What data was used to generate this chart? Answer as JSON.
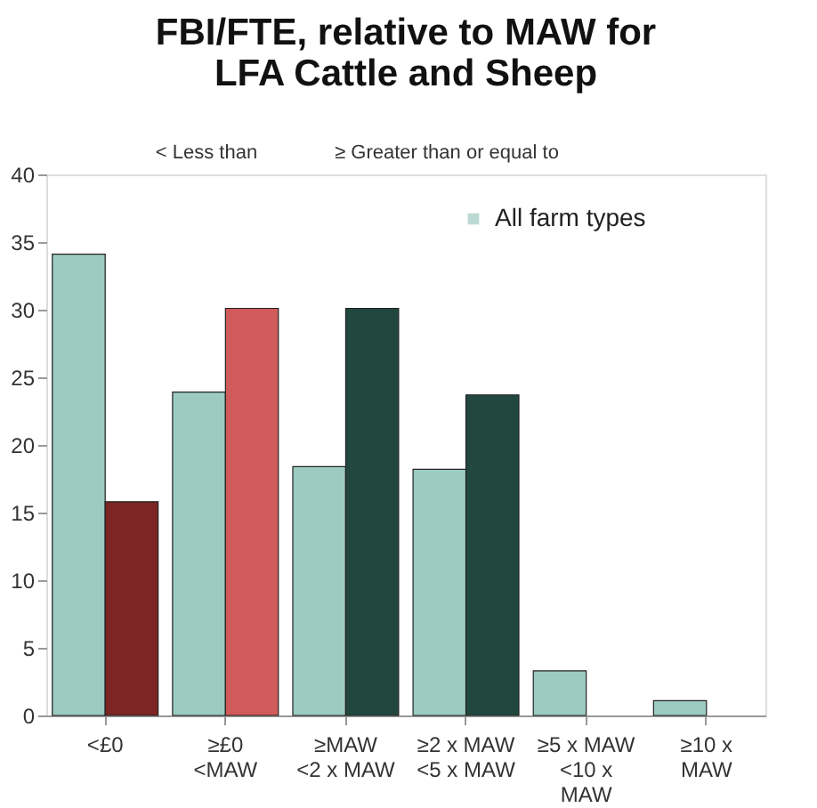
{
  "chart_data": {
    "type": "bar",
    "title": "FBI/FTE, relative to MAW for\nLFA Cattle and Sheep",
    "annotations": [
      "< Less than",
      "≥ Greater than or equal to"
    ],
    "categories": [
      "<£0",
      "≥£0\n<MAW",
      "≥MAW\n<2 x MAW",
      "≥2 x MAW\n<5 x MAW",
      "≥5 x MAW\n<10 x\nMAW",
      "≥10 x\nMAW"
    ],
    "series": [
      {
        "name": "All farm types",
        "color": "#9ccbc1",
        "values": [
          34.1,
          23.9,
          18.4,
          18.2,
          3.3,
          1.1
        ]
      },
      {
        "colors": [
          "#7d2524",
          "#d15a5a",
          "#21473f",
          "#21473f",
          null,
          null
        ],
        "values": [
          15.8,
          30.1,
          30.1,
          23.7,
          null,
          null
        ]
      }
    ],
    "ylim": [
      0,
      40
    ],
    "yticks": [
      0,
      5,
      10,
      15,
      20,
      25,
      30,
      35,
      40
    ],
    "grid": false,
    "legend": "top right"
  }
}
